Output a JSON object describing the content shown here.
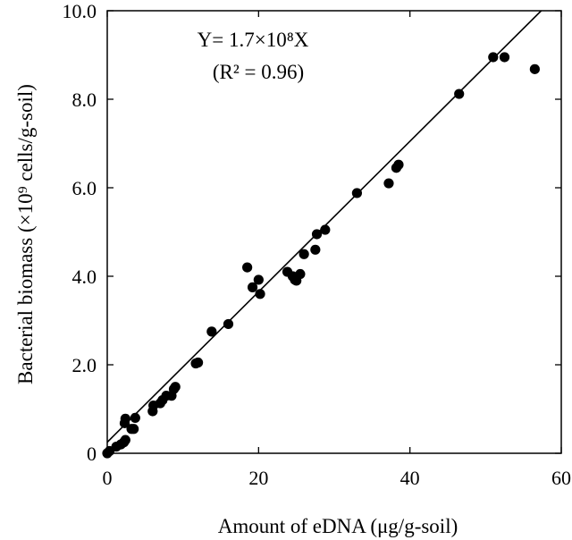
{
  "chart_data": {
    "type": "scatter",
    "xlabel": "Amount of eDNA (μg/g-soil)",
    "ylabel": "Bacterial biomass (×10⁹ cells/g-soil)",
    "xlim": [
      0,
      60
    ],
    "ylim": [
      0,
      10
    ],
    "x_ticks": [
      0,
      20,
      40,
      60
    ],
    "x_tick_labels": [
      "0",
      "20",
      "40",
      "60"
    ],
    "y_ticks": [
      0,
      2,
      4,
      6,
      8,
      10
    ],
    "y_tick_labels": [
      "0",
      "2.0",
      "4.0",
      "6.0",
      "8.0",
      "10.0"
    ],
    "grid": false,
    "annotation": {
      "equation": "Y= 1.7×10⁸X",
      "r_squared": "(R² = 0.96)"
    },
    "fit_line": {
      "slope": 0.17,
      "intercept": 0.25
    },
    "points": [
      {
        "x": 0.0,
        "y": 0.0
      },
      {
        "x": 0.3,
        "y": 0.05
      },
      {
        "x": 1.2,
        "y": 0.15
      },
      {
        "x": 1.8,
        "y": 0.2
      },
      {
        "x": 2.2,
        "y": 0.25
      },
      {
        "x": 2.4,
        "y": 0.3
      },
      {
        "x": 2.3,
        "y": 0.68
      },
      {
        "x": 2.4,
        "y": 0.78
      },
      {
        "x": 3.2,
        "y": 0.55
      },
      {
        "x": 3.5,
        "y": 0.55
      },
      {
        "x": 3.7,
        "y": 0.8
      },
      {
        "x": 6.0,
        "y": 0.95
      },
      {
        "x": 6.1,
        "y": 1.08
      },
      {
        "x": 7.0,
        "y": 1.13
      },
      {
        "x": 7.3,
        "y": 1.2
      },
      {
        "x": 7.8,
        "y": 1.3
      },
      {
        "x": 8.5,
        "y": 1.3
      },
      {
        "x": 8.8,
        "y": 1.45
      },
      {
        "x": 9.0,
        "y": 1.5
      },
      {
        "x": 11.7,
        "y": 2.03
      },
      {
        "x": 12.0,
        "y": 2.05
      },
      {
        "x": 13.8,
        "y": 2.75
      },
      {
        "x": 16.0,
        "y": 2.92
      },
      {
        "x": 18.5,
        "y": 4.2
      },
      {
        "x": 19.2,
        "y": 3.75
      },
      {
        "x": 20.0,
        "y": 3.92
      },
      {
        "x": 20.2,
        "y": 3.6
      },
      {
        "x": 23.8,
        "y": 4.1
      },
      {
        "x": 24.5,
        "y": 4.0
      },
      {
        "x": 24.8,
        "y": 3.92
      },
      {
        "x": 25.0,
        "y": 3.9
      },
      {
        "x": 25.5,
        "y": 4.05
      },
      {
        "x": 26.0,
        "y": 4.5
      },
      {
        "x": 27.5,
        "y": 4.6
      },
      {
        "x": 27.7,
        "y": 4.95
      },
      {
        "x": 28.8,
        "y": 5.05
      },
      {
        "x": 33.0,
        "y": 5.88
      },
      {
        "x": 37.2,
        "y": 6.1
      },
      {
        "x": 38.2,
        "y": 6.45
      },
      {
        "x": 38.5,
        "y": 6.52
      },
      {
        "x": 46.5,
        "y": 8.12
      },
      {
        "x": 51.0,
        "y": 8.95
      },
      {
        "x": 52.5,
        "y": 8.95
      },
      {
        "x": 56.5,
        "y": 8.68
      }
    ]
  }
}
